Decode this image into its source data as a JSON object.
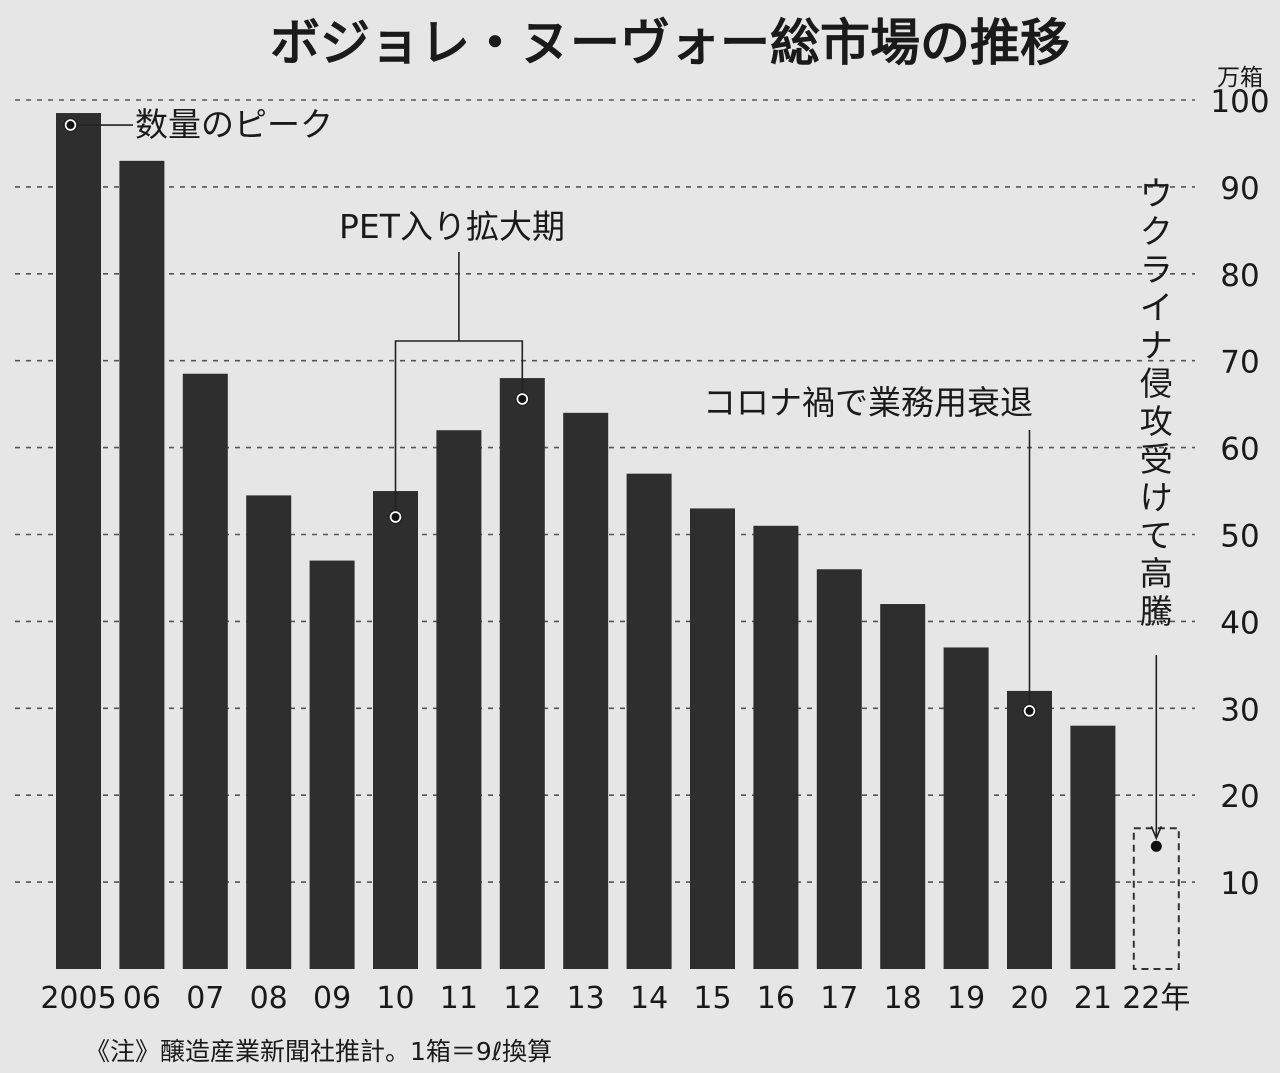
{
  "chart_data": {
    "type": "bar",
    "title": "ボジョレ・ヌーヴォー総市場の推移",
    "unit": "万箱",
    "categories": [
      "2005",
      "06",
      "07",
      "08",
      "09",
      "10",
      "11",
      "12",
      "13",
      "14",
      "15",
      "16",
      "17",
      "18",
      "19",
      "20",
      "21",
      "22年"
    ],
    "values": [
      98.5,
      93,
      68.5,
      54.5,
      47,
      55,
      62,
      68,
      64,
      57,
      53,
      51,
      46,
      42,
      37,
      32,
      28,
      15.5
    ],
    "projected_last": true,
    "ylim": [
      0,
      100
    ],
    "yticks": [
      10,
      20,
      30,
      40,
      50,
      60,
      70,
      80,
      90,
      100
    ],
    "grid": "dashed",
    "annotations": {
      "peak": "数量のピーク",
      "pet": "PET入り拡大期",
      "corona": "コロナ禍で業務用衰退",
      "ukraine": "ウクライナ侵攻受けて高騰"
    }
  },
  "note": "《注》醸造産業新聞社推計。1箱＝9ℓ換算",
  "colors": {
    "background": "#e6e6e6",
    "bar": "#2e2e2e",
    "text": "#1a1a1a",
    "grid": "#555555"
  }
}
